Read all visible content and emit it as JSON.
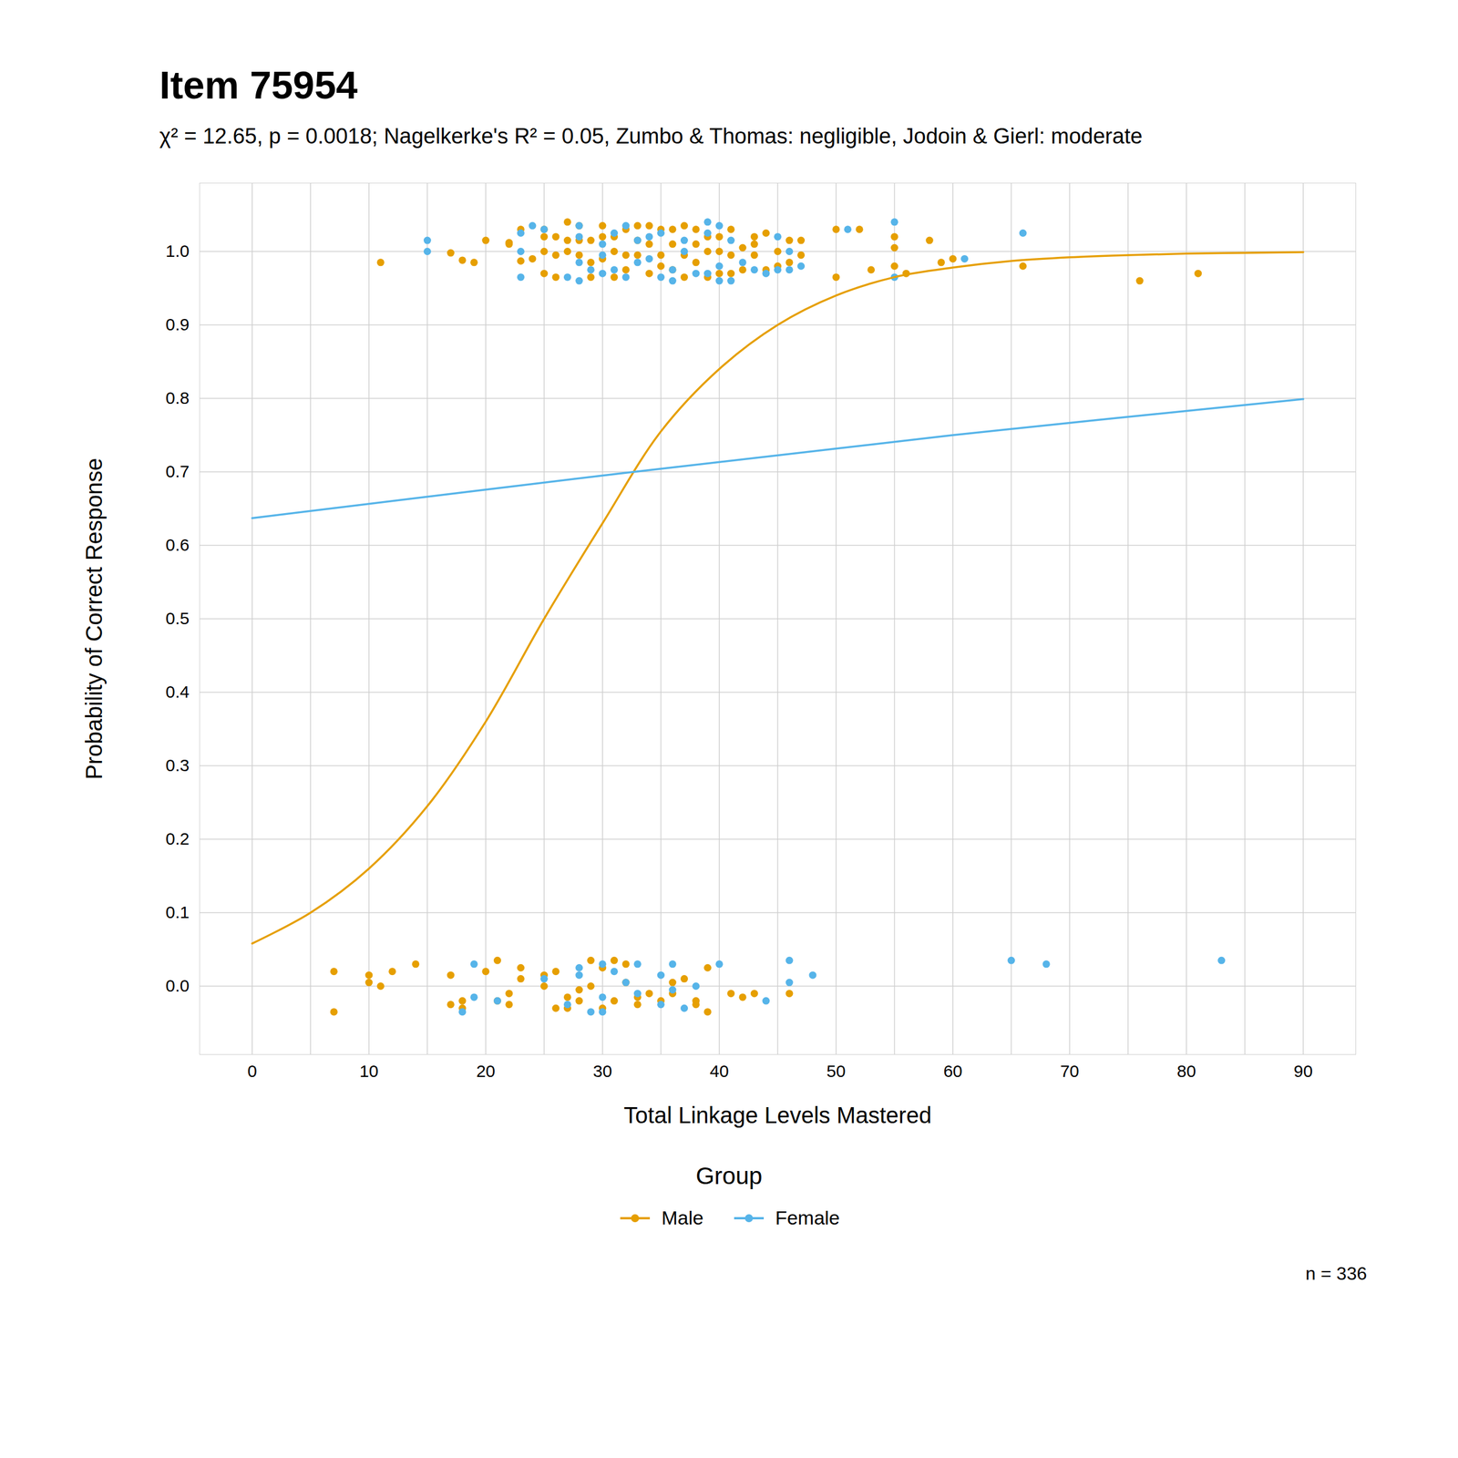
{
  "chart_data": {
    "type": "scatter",
    "title": "Item 75954",
    "subtitle": "χ² = 12.65, p = 0.0018; Nagelkerke's R² = 0.05, Zumbo & Thomas: negligible, Jodoin & Gierl: moderate",
    "x_label": "Total Linkage Levels Mastered",
    "y_label": "Probability of Correct Response",
    "legend_title": "Group",
    "legend": "bottom",
    "caption": "n = 336",
    "grid": true,
    "xlim": [
      -4.5,
      94.5
    ],
    "xticks": [
      0,
      10,
      20,
      30,
      40,
      50,
      60,
      70,
      80,
      90
    ],
    "x_minor_grid": [
      5,
      15,
      25,
      35,
      45,
      55,
      65,
      75,
      85
    ],
    "ylim": [
      -0.093,
      1.093
    ],
    "yticks": [
      {
        "value": 0,
        "label": "0.0"
      },
      {
        "value": 0.1,
        "label": "0.1"
      },
      {
        "value": 0.2,
        "label": "0.2"
      },
      {
        "value": 0.3,
        "label": "0.3"
      },
      {
        "value": 0.4,
        "label": "0.4"
      },
      {
        "value": 0.5,
        "label": "0.5"
      },
      {
        "value": 0.6,
        "label": "0.6"
      },
      {
        "value": 0.7,
        "label": "0.7"
      },
      {
        "value": 0.8,
        "label": "0.8"
      },
      {
        "value": 0.9,
        "label": "0.9"
      },
      {
        "value": 1,
        "label": "1.0"
      }
    ],
    "series": [
      {
        "name": "Male",
        "color": "#E69F00",
        "marker": "circle",
        "line_style": "solid",
        "points": {
          "x": [
            11,
            17,
            18,
            19,
            20,
            22,
            22,
            23,
            23,
            24,
            25,
            25,
            25,
            25,
            26,
            26,
            26,
            27,
            27,
            27,
            28,
            28,
            28,
            29,
            29,
            29,
            30,
            30,
            30,
            31,
            31,
            31,
            32,
            32,
            32,
            33,
            33,
            33,
            34,
            34,
            34,
            35,
            35,
            35,
            36,
            36,
            36,
            37,
            37,
            37,
            38,
            38,
            38,
            39,
            39,
            39,
            40,
            40,
            40,
            41,
            41,
            41,
            42,
            42,
            43,
            43,
            43,
            44,
            44,
            45,
            45,
            46,
            46,
            47,
            47,
            50,
            50,
            52,
            53,
            55,
            55,
            55,
            56,
            58,
            59,
            60,
            66,
            76,
            81,
            7,
            7,
            10,
            10,
            11,
            12,
            14,
            17,
            17,
            18,
            18,
            20,
            21,
            21,
            22,
            22,
            23,
            23,
            25,
            25,
            26,
            26,
            27,
            27,
            28,
            28,
            29,
            29,
            30,
            30,
            31,
            31,
            32,
            32,
            33,
            33,
            34,
            35,
            36,
            36,
            37,
            38,
            38,
            39,
            39,
            41,
            42,
            43,
            46
          ],
          "y": [
            0.985,
            0.998,
            0.988,
            0.985,
            1.015,
            1.012,
            1.01,
            1.03,
            0.987,
            0.99,
            1.02,
            1.03,
            1.0,
            0.97,
            1.02,
            0.995,
            0.965,
            1.04,
            1.015,
            1.0,
            1.035,
            1.015,
            0.995,
            1.015,
            0.985,
            0.965,
            1.035,
            1.02,
            0.99,
            0.965,
            1.0,
            1.02,
            1.03,
            0.995,
            0.975,
            1.035,
            1.015,
            0.995,
            1.035,
            0.97,
            1.01,
            1.03,
            0.995,
            0.98,
            1.03,
            1.01,
            0.975,
            1.035,
            0.995,
            0.965,
            1.01,
            0.985,
            1.03,
            0.965,
            1.0,
            1.02,
            0.97,
            1.0,
            1.02,
            1.03,
            0.995,
            0.97,
            1.005,
            0.975,
            1.02,
            1.01,
            0.995,
            1.025,
            0.975,
            1.0,
            0.98,
            1.015,
            0.985,
            1.015,
            0.995,
            1.03,
            0.965,
            1.03,
            0.975,
            1.02,
            1.005,
            0.98,
            0.97,
            1.015,
            0.985,
            0.99,
            0.98,
            0.96,
            0.97,
            0.02,
            -0.035,
            0.015,
            0.005,
            0.0,
            0.02,
            0.03,
            -0.025,
            0.015,
            -0.02,
            -0.03,
            0.02,
            0.035,
            -0.02,
            -0.01,
            -0.025,
            0.025,
            0.01,
            0.015,
            0.0,
            -0.03,
            0.02,
            -0.015,
            -0.03,
            -0.02,
            -0.005,
            0.035,
            0.0,
            0.025,
            -0.03,
            0.035,
            -0.02,
            0.005,
            0.03,
            -0.015,
            -0.025,
            -0.01,
            -0.02,
            0.005,
            -0.01,
            0.01,
            -0.025,
            -0.02,
            0.025,
            -0.035,
            -0.01,
            -0.015,
            -0.01,
            -0.01
          ]
        },
        "curve": {
          "x": [
            0,
            5,
            10,
            15,
            20,
            25,
            30,
            35,
            40,
            45,
            50,
            55,
            60,
            65,
            70,
            75,
            80,
            85,
            90
          ],
          "y": [
            0.058,
            0.1,
            0.16,
            0.245,
            0.36,
            0.5,
            0.63,
            0.755,
            0.84,
            0.9,
            0.94,
            0.965,
            0.978,
            0.987,
            0.992,
            0.995,
            0.997,
            0.998,
            0.999
          ]
        }
      },
      {
        "name": "Female",
        "color": "#56B4E9",
        "marker": "circle",
        "line_style": "solid",
        "points": {
          "x": [
            15,
            15,
            23,
            23,
            23,
            24,
            25,
            27,
            28,
            28,
            28,
            28,
            29,
            30,
            30,
            30,
            31,
            31,
            32,
            32,
            33,
            33,
            34,
            34,
            35,
            35,
            36,
            36,
            37,
            37,
            38,
            39,
            39,
            39,
            40,
            40,
            40,
            41,
            41,
            42,
            43,
            44,
            45,
            45,
            46,
            46,
            47,
            51,
            55,
            55,
            61,
            66,
            18,
            19,
            19,
            21,
            25,
            27,
            28,
            28,
            29,
            30,
            30,
            30,
            31,
            32,
            33,
            33,
            35,
            35,
            36,
            36,
            37,
            38,
            40,
            44,
            46,
            46,
            48,
            65,
            68,
            83
          ],
          "y": [
            1.015,
            1.0,
            1.025,
            0.965,
            1.0,
            1.035,
            1.03,
            0.965,
            1.035,
            1.02,
            0.985,
            0.96,
            0.975,
            1.01,
            0.995,
            0.97,
            1.025,
            0.975,
            1.035,
            0.965,
            1.015,
            0.985,
            1.02,
            0.99,
            1.025,
            0.965,
            0.96,
            0.975,
            1.015,
            1.0,
            0.97,
            1.04,
            1.025,
            0.97,
            1.035,
            0.98,
            0.96,
            1.015,
            0.96,
            0.985,
            0.975,
            0.97,
            1.02,
            0.975,
            1.0,
            0.975,
            0.98,
            1.03,
            1.04,
            0.965,
            0.99,
            1.025,
            -0.035,
            0.03,
            -0.015,
            -0.02,
            0.01,
            -0.025,
            0.025,
            0.015,
            -0.035,
            0.03,
            -0.015,
            -0.035,
            0.02,
            0.005,
            0.03,
            -0.01,
            0.015,
            -0.025,
            0.03,
            -0.005,
            -0.03,
            0.0,
            0.03,
            -0.02,
            0.035,
            0.005,
            0.015,
            0.035,
            0.03,
            0.035
          ]
        },
        "curve": {
          "x": [
            0,
            30,
            60,
            90
          ],
          "y": [
            0.637,
            0.695,
            0.75,
            0.799
          ]
        }
      }
    ]
  }
}
